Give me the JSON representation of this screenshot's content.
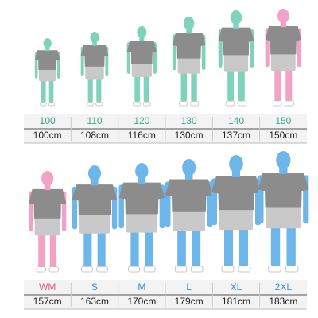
{
  "rows": [
    {
      "items": [
        {
          "size": "100",
          "height": "100cm"
        },
        {
          "size": "110",
          "height": "108cm"
        },
        {
          "size": "120",
          "height": "116cm"
        },
        {
          "size": "130",
          "height": "130cm"
        },
        {
          "size": "140",
          "height": "137cm"
        },
        {
          "size": "150",
          "height": "150cm"
        }
      ]
    },
    {
      "items": [
        {
          "size": "WM",
          "height": "157cm"
        },
        {
          "size": "S",
          "height": "163cm"
        },
        {
          "size": "M",
          "height": "170cm"
        },
        {
          "size": "L",
          "height": "179cm"
        },
        {
          "size": "XL",
          "height": "181cm"
        },
        {
          "size": "2XL",
          "height": "183cm"
        }
      ]
    }
  ]
}
